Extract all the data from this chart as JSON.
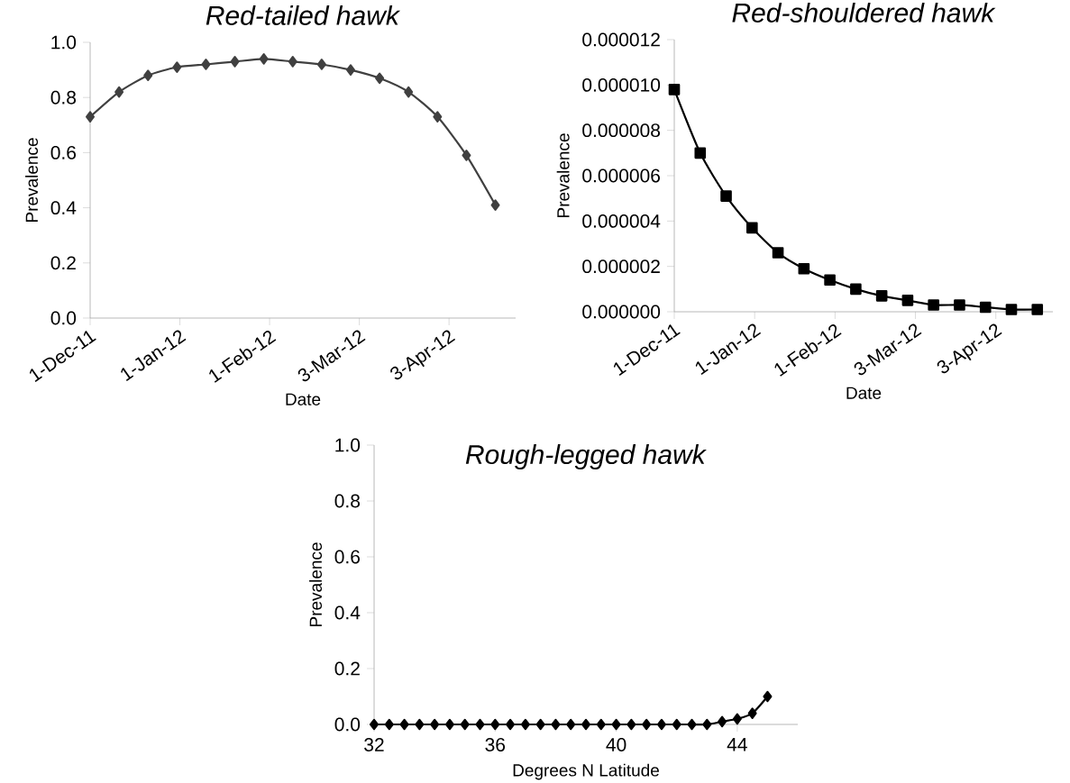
{
  "chart_data": [
    {
      "type": "line",
      "title": "*Red-tailed hawk*",
      "xlabel": "Date",
      "ylabel": "Prevalence",
      "x": [
        "2011-12-01",
        "2011-12-11",
        "2011-12-21",
        "2011-12-31",
        "2012-01-10",
        "2012-01-20",
        "2012-01-30",
        "2012-02-09",
        "2012-02-19",
        "2012-02-29",
        "2012-03-10",
        "2012-03-20",
        "2012-03-30",
        "2012-04-09",
        "2012-04-19"
      ],
      "series": [
        {
          "color": "#404040",
          "values": [
            0.73,
            0.82,
            0.88,
            0.91,
            0.92,
            0.93,
            0.94,
            0.93,
            0.92,
            0.9,
            0.87,
            0.82,
            0.73,
            0.59,
            0.41
          ]
        }
      ],
      "xlim": [
        "2011-12-01",
        "2012-04-26"
      ],
      "xticks": [
        {
          "value": "2011-12-01",
          "label": "1-Dec-11"
        },
        {
          "value": "2012-01-01",
          "label": "1-Jan-12"
        },
        {
          "value": "2012-02-01",
          "label": "1-Feb-12"
        },
        {
          "value": "2012-03-03",
          "label": "3-Mar-12"
        },
        {
          "value": "2012-04-03",
          "label": "3-Apr-12"
        }
      ],
      "ylim": [
        0,
        1
      ],
      "yticks": [
        {
          "value": 0,
          "label": "0.0"
        },
        {
          "value": 0.2,
          "label": "0.2"
        },
        {
          "value": 0.4,
          "label": "0.4"
        },
        {
          "value": 0.6,
          "label": "0.6"
        },
        {
          "value": 0.8,
          "label": "0.8"
        },
        {
          "value": 1,
          "label": "1.0"
        }
      ],
      "marker": "diamond"
    },
    {
      "type": "line",
      "title": "*Red-shouldered hawk*",
      "xlabel": "Date",
      "ylabel": "Prevalence",
      "x": [
        "2011-12-01",
        "2011-12-11",
        "2011-12-21",
        "2011-12-31",
        "2012-01-10",
        "2012-01-20",
        "2012-01-30",
        "2012-02-09",
        "2012-02-19",
        "2012-02-29",
        "2012-03-10",
        "2012-03-20",
        "2012-03-30",
        "2012-04-09",
        "2012-04-19"
      ],
      "series": [
        {
          "color": "#000000",
          "values": [
            9.8e-06,
            7e-06,
            5.1e-06,
            3.7e-06,
            2.6e-06,
            1.9e-06,
            1.4e-06,
            1e-06,
            7e-07,
            5e-07,
            3e-07,
            3e-07,
            2e-07,
            1e-07,
            1e-07
          ]
        }
      ],
      "xlim": [
        "2011-12-01",
        "2012-04-25"
      ],
      "xticks": [
        {
          "value": "2011-12-01",
          "label": "1-Dec-11"
        },
        {
          "value": "2012-01-01",
          "label": "1-Jan-12"
        },
        {
          "value": "2012-02-01",
          "label": "1-Feb-12"
        },
        {
          "value": "2012-03-03",
          "label": "3-Mar-12"
        },
        {
          "value": "2012-04-03",
          "label": "3-Apr-12"
        }
      ],
      "ylim": [
        0,
        1.2e-05
      ],
      "yticks": [
        {
          "value": 0,
          "label": "0.000000"
        },
        {
          "value": 2e-06,
          "label": "0.000002"
        },
        {
          "value": 4e-06,
          "label": "0.000004"
        },
        {
          "value": 6e-06,
          "label": "0.000006"
        },
        {
          "value": 8e-06,
          "label": "0.000008"
        },
        {
          "value": 1e-05,
          "label": "0.000010"
        },
        {
          "value": 1.2e-05,
          "label": "0.000012"
        }
      ],
      "marker": "square"
    },
    {
      "type": "line",
      "title": "*Rough-legged hawk*",
      "xlabel": "Degrees  N Latitude",
      "ylabel": "Prevalence",
      "x": [
        32,
        32.5,
        33,
        33.5,
        34,
        34.5,
        35,
        35.5,
        36,
        36.5,
        37,
        37.5,
        38,
        38.5,
        39,
        39.5,
        40,
        40.5,
        41,
        41.5,
        42,
        42.5,
        43,
        43.5,
        44,
        44.5,
        45
      ],
      "series": [
        {
          "color": "#000000",
          "values": [
            0,
            0,
            0,
            0,
            0,
            0,
            0,
            0,
            0,
            0,
            0,
            0,
            0,
            0,
            0,
            0,
            0,
            0,
            0,
            0,
            0,
            0,
            0,
            0.01,
            0.02,
            0.04,
            0.1
          ]
        }
      ],
      "xlim": [
        32,
        46
      ],
      "xticks": [
        {
          "value": 32,
          "label": "32"
        },
        {
          "value": 36,
          "label": "36"
        },
        {
          "value": 40,
          "label": "40"
        },
        {
          "value": 44,
          "label": "44"
        }
      ],
      "ylim": [
        0,
        1
      ],
      "yticks": [
        {
          "value": 0,
          "label": "0.0"
        },
        {
          "value": 0.2,
          "label": "0.2"
        },
        {
          "value": 0.4,
          "label": "0.4"
        },
        {
          "value": 0.6,
          "label": "0.6"
        },
        {
          "value": 0.8,
          "label": "0.8"
        },
        {
          "value": 1,
          "label": "1.0"
        }
      ],
      "marker": "diamond"
    }
  ]
}
